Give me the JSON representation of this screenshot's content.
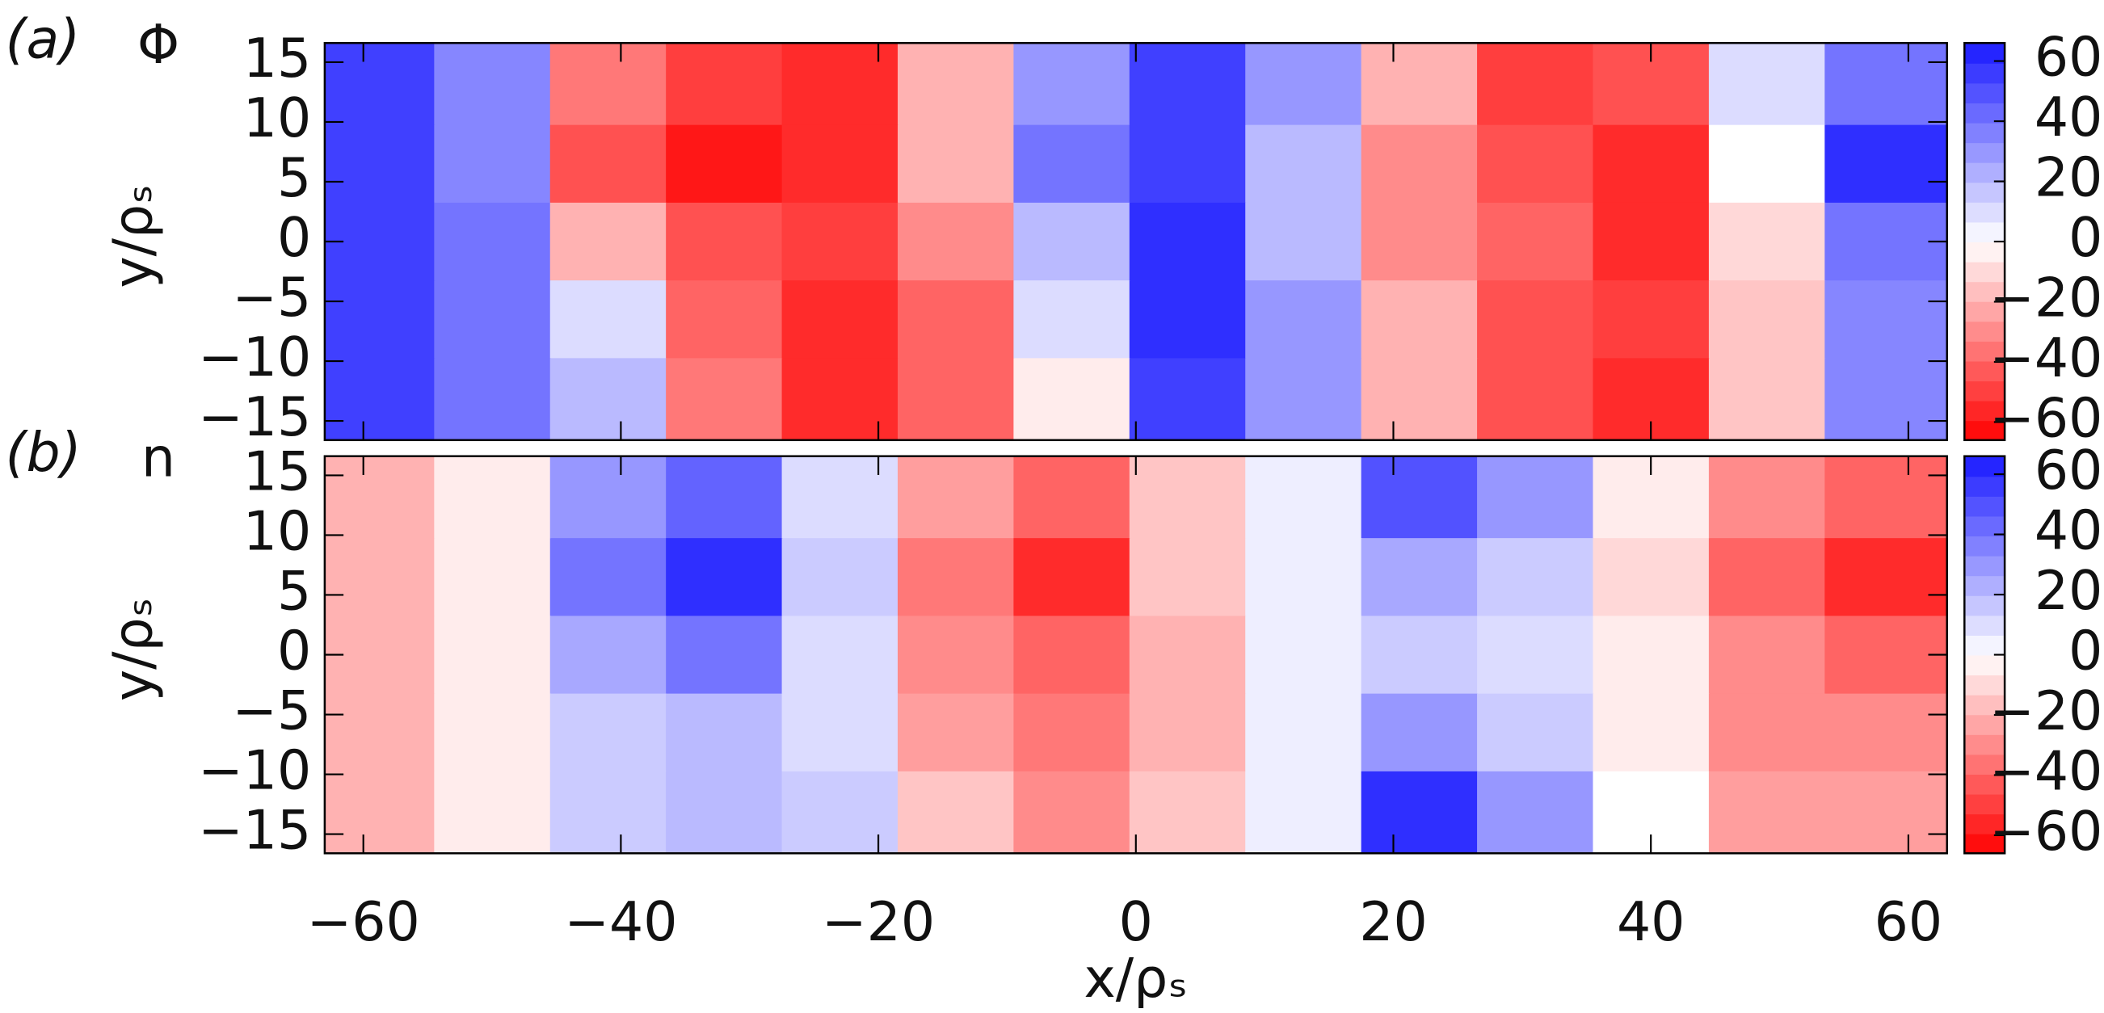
{
  "chart_data": [
    {
      "type": "heatmap",
      "panel_label": "(a)",
      "title": "Φ",
      "y_label": "y/ρₛ",
      "colormap": [
        "#ff0000",
        "#ffffff",
        "#1a1aff"
      ],
      "x": [
        -59,
        -50,
        -41,
        -32,
        -23,
        -14,
        -5,
        4,
        13,
        22,
        31,
        40,
        49,
        58
      ],
      "y": [
        13,
        6.5,
        0,
        -6.5,
        -13
      ],
      "z": [
        [
          55,
          35,
          -35,
          -50,
          -55,
          -20,
          30,
          55,
          30,
          -20,
          -50,
          -45,
          10,
          40
        ],
        [
          55,
          35,
          -45,
          -60,
          -55,
          -20,
          40,
          55,
          20,
          -30,
          -45,
          -55,
          0,
          60
        ],
        [
          55,
          40,
          -20,
          -45,
          -50,
          -30,
          20,
          60,
          20,
          -30,
          -40,
          -55,
          -10,
          40
        ],
        [
          55,
          40,
          10,
          -40,
          -55,
          -40,
          10,
          60,
          30,
          -20,
          -45,
          -50,
          -15,
          35
        ],
        [
          55,
          40,
          20,
          -35,
          -55,
          -40,
          -5,
          55,
          30,
          -20,
          -45,
          -55,
          -15,
          35
        ]
      ],
      "xlim": [
        -63,
        63
      ],
      "ylim": [
        -16.6,
        16.6
      ],
      "yticks": [
        {
          "value": -15,
          "label": "−15"
        },
        {
          "value": -10,
          "label": "−10"
        },
        {
          "value": -5,
          "label": "−5"
        },
        0,
        5,
        10,
        15
      ],
      "colorbar_lim": [
        -66,
        66
      ],
      "colorbar_ticks": [
        {
          "value": -60,
          "label": "−60"
        },
        {
          "value": -40,
          "label": "−40"
        },
        {
          "value": -20,
          "label": "−20"
        },
        0,
        20,
        40,
        60
      ]
    },
    {
      "type": "heatmap",
      "panel_label": "(b)",
      "title": "n",
      "y_label": "y/ρₛ",
      "x_label": "x/ρₛ",
      "colormap": [
        "#ff0000",
        "#ffffff",
        "#1a1aff"
      ],
      "x": [
        -59,
        -50,
        -41,
        -32,
        -23,
        -14,
        -5,
        4,
        13,
        22,
        31,
        40,
        49,
        58
      ],
      "y": [
        13,
        6.5,
        0,
        -6.5,
        -13
      ],
      "z": [
        [
          -20,
          -5,
          30,
          45,
          10,
          -25,
          -40,
          -15,
          5,
          50,
          30,
          -5,
          -30,
          -40
        ],
        [
          -20,
          -5,
          40,
          60,
          15,
          -35,
          -55,
          -15,
          5,
          25,
          15,
          -10,
          -40,
          -55
        ],
        [
          -20,
          -5,
          25,
          40,
          10,
          -30,
          -40,
          -20,
          5,
          15,
          10,
          -5,
          -30,
          -40
        ],
        [
          -20,
          -5,
          15,
          20,
          10,
          -25,
          -35,
          -20,
          5,
          30,
          15,
          -5,
          -30,
          -30
        ],
        [
          -20,
          -5,
          15,
          20,
          15,
          -15,
          -30,
          -15,
          5,
          60,
          30,
          0,
          -25,
          -25
        ]
      ],
      "xlim": [
        -63,
        63
      ],
      "ylim": [
        -16.6,
        16.6
      ],
      "xticks": [
        {
          "value": -60,
          "label": "−60"
        },
        {
          "value": -40,
          "label": "−40"
        },
        {
          "value": -20,
          "label": "−20"
        },
        0,
        20,
        40,
        60
      ],
      "yticks": [
        {
          "value": -15,
          "label": "−15"
        },
        {
          "value": -10,
          "label": "−10"
        },
        {
          "value": -5,
          "label": "−5"
        },
        0,
        5,
        10,
        15
      ],
      "colorbar_lim": [
        -66,
        66
      ],
      "colorbar_ticks": [
        {
          "value": -60,
          "label": "−60"
        },
        {
          "value": -40,
          "label": "−40"
        },
        {
          "value": -20,
          "label": "−20"
        },
        0,
        20,
        40,
        60
      ]
    }
  ]
}
